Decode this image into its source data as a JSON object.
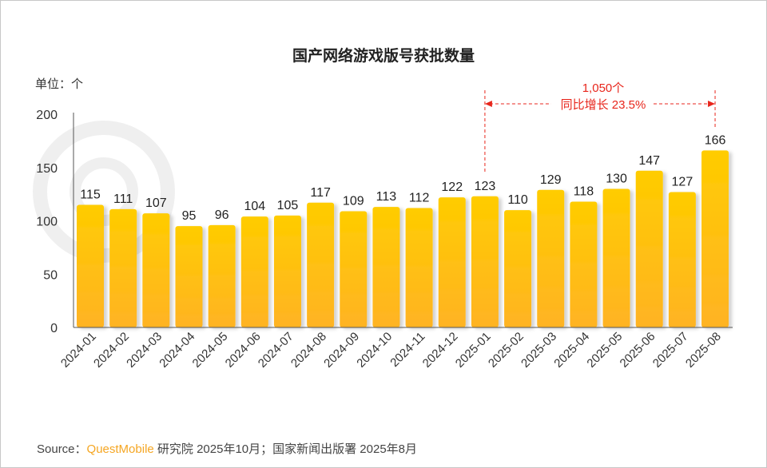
{
  "chart_data": {
    "type": "bar",
    "title": "国产网络游戏版号获批数量",
    "unit_label": "单位：个",
    "categories": [
      "2024-01",
      "2024-02",
      "2024-03",
      "2024-04",
      "2024-05",
      "2024-06",
      "2024-07",
      "2024-08",
      "2024-09",
      "2024-10",
      "2024-11",
      "2024-12",
      "2025-01",
      "2025-02",
      "2025-03",
      "2025-04",
      "2025-05",
      "2025-06",
      "2025-07",
      "2025-08"
    ],
    "values": [
      115,
      111,
      107,
      95,
      96,
      104,
      105,
      117,
      109,
      113,
      112,
      122,
      123,
      110,
      129,
      118,
      130,
      147,
      127,
      166
    ],
    "ylim": [
      0,
      200
    ],
    "yticks": [
      0,
      50,
      100,
      150,
      200
    ],
    "grid": false,
    "bar_color_top": "#FFCC00",
    "bar_color_bottom": "#FFB324",
    "annotation": {
      "line1": "1,050个",
      "line2": "同比增长 23.5%",
      "from": "2025-01",
      "to": "2025-08",
      "color": "#E8261C"
    }
  },
  "source": {
    "prefix": "Source：",
    "brand": "QuestMobile",
    "rest": " 研究院 2025年10月；国家新闻出版署 2025年8月",
    "brand_color": "#F5A623"
  }
}
